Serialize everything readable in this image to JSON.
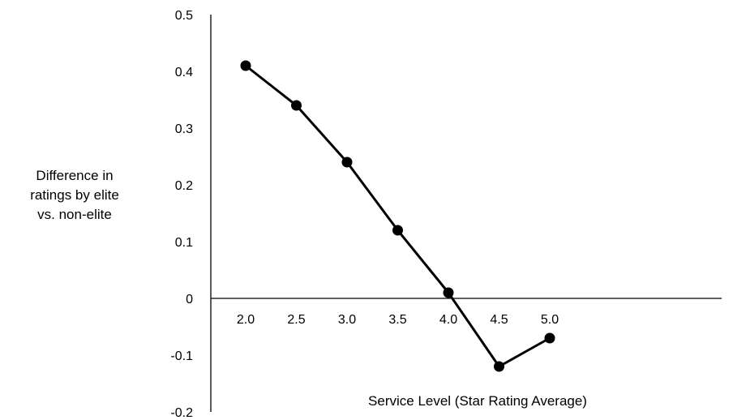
{
  "chart_data": {
    "type": "line",
    "title": "",
    "xlabel": "Service Level (Star Rating Average)",
    "ylabel": [
      "Difference in",
      "ratings by elite",
      "vs. non-elite"
    ],
    "categories": [
      "2.0",
      "2.5",
      "3.0",
      "3.5",
      "4.0",
      "4.5",
      "5.0"
    ],
    "series": [
      {
        "values": [
          0.41,
          0.34,
          0.24,
          0.12,
          0.01,
          -0.12,
          -0.07
        ]
      }
    ],
    "y_ticks": [
      "0.5",
      "0.4",
      "0.3",
      "0.2",
      "0.1",
      "0",
      "-0.1",
      "-0.2"
    ],
    "ylim": [
      -0.2,
      0.5
    ],
    "grid": false,
    "legend": "none",
    "colors": {
      "line": "#000000",
      "marker": "#000000",
      "axis": "#000000"
    }
  }
}
